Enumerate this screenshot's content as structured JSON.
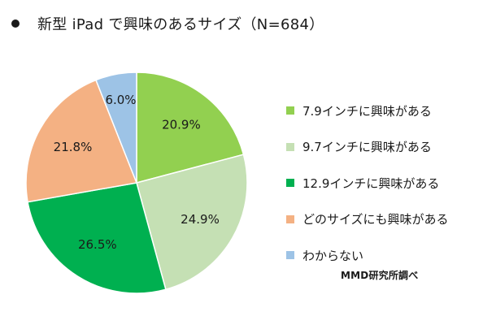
{
  "header": {
    "title": "新型 iPad で興味のあるサイズ（N=684）"
  },
  "source_note": "MMD研究所調べ",
  "chart_data": {
    "type": "pie",
    "title": "新型 iPad で興味のあるサイズ（N=684）",
    "unit": "%",
    "start_angle": "12 o'clock",
    "direction": "clockwise",
    "legend_position": "right",
    "categories": [
      "7.9インチに興味がある",
      "9.7インチに興味がある",
      "12.9インチに興味がある",
      "どのサイズにも興味がある",
      "わからない"
    ],
    "values": [
      20.9,
      24.9,
      26.5,
      21.8,
      6.0
    ],
    "labels": [
      "20.9%",
      "24.9%",
      "26.5%",
      "21.8%",
      "6.0%"
    ],
    "colors": [
      "#92d050",
      "#c5e0b4",
      "#00b050",
      "#f4b183",
      "#9dc3e6"
    ]
  }
}
